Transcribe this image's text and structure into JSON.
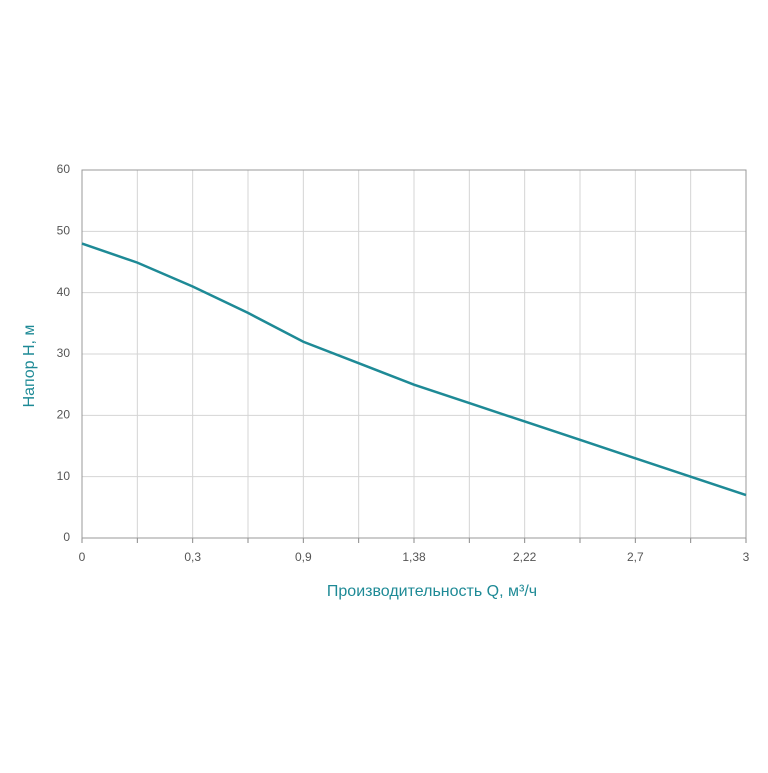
{
  "chart_data": {
    "type": "line",
    "x_label": "Производительность Q, м³/ч",
    "y_label": "Напор Н, м",
    "categories": [
      "0",
      null,
      "0,3",
      null,
      "0,9",
      null,
      "1,38",
      null,
      "2,22",
      null,
      "2,7",
      null,
      "3"
    ],
    "values": [
      48,
      44.9,
      41,
      36.7,
      32,
      28.5,
      25,
      22,
      19,
      16,
      13,
      10,
      7
    ],
    "color": "#1e8a96",
    "ylim": [
      0,
      60
    ],
    "yticks": [
      0,
      10,
      20,
      30,
      40,
      50,
      60
    ],
    "grid": true
  }
}
